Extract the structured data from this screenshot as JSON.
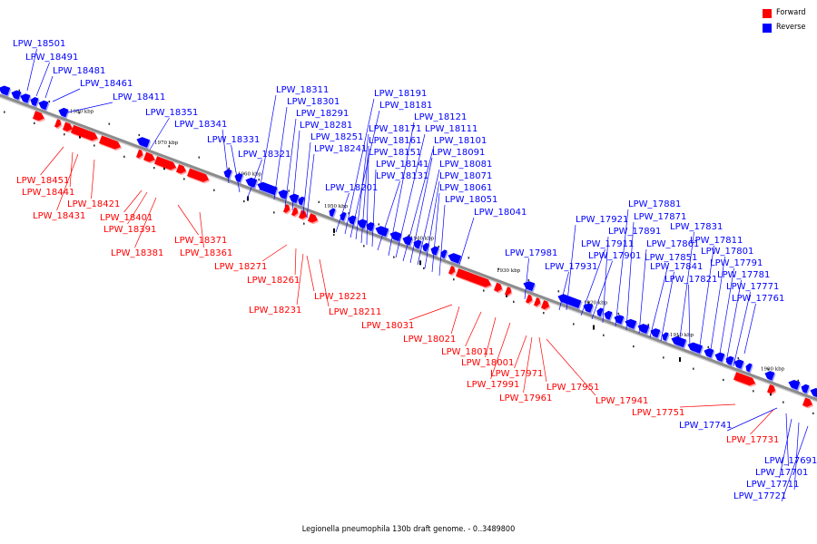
{
  "colors": {
    "forward": "#ff0000",
    "reverse": "#0000ff",
    "axis": "#8c8c8c"
  },
  "legend": [
    {
      "label": "Forward",
      "color": "#ff0000"
    },
    {
      "label": "Reverse",
      "color": "#0000ff"
    }
  ],
  "caption": "Legionella pneumophila 130b draft genome. - 0..3489800",
  "ticks": [
    "1980 kbp",
    "1970 kbp",
    "1960 kbp",
    "1950 kbp",
    "1940 kbp",
    "1930 kbp",
    "1920 kbp",
    "1910 kbp",
    "1900 kbp"
  ],
  "reverse_genes": [
    "LPW_18501",
    "LPW_18491",
    "LPW_18481",
    "LPW_18461",
    "LPW_18411",
    "LPW_18351",
    "LPW_18341",
    "LPW_18331",
    "LPW_18321",
    "LPW_18311",
    "LPW_18301",
    "LPW_18291",
    "LPW_18281",
    "LPW_18251",
    "LPW_18241",
    "LPW_18201",
    "LPW_18191",
    "LPW_18181",
    "LPW_18171",
    "LPW_18161",
    "LPW_18151",
    "LPW_18141",
    "LPW_18131",
    "LPW_18121",
    "LPW_18111",
    "LPW_18101",
    "LPW_18091",
    "LPW_18081",
    "LPW_18071",
    "LPW_18061",
    "LPW_18051",
    "LPW_18041",
    "LPW_17981",
    "LPW_17931",
    "LPW_17921",
    "LPW_17911",
    "LPW_17901",
    "LPW_17891",
    "LPW_17881",
    "LPW_17871",
    "LPW_17861",
    "LPW_17851",
    "LPW_17841",
    "LPW_17831",
    "LPW_17821",
    "LPW_17811",
    "LPW_17801",
    "LPW_17791",
    "LPW_17781",
    "LPW_17771",
    "LPW_17761",
    "LPW_17741",
    "LPW_17691",
    "LPW_17701",
    "LPW_17711",
    "LPW_17721"
  ],
  "forward_genes": [
    "LPW_18451",
    "LPW_18441",
    "LPW_18431",
    "LPW_18421",
    "LPW_18401",
    "LPW_18391",
    "LPW_18381",
    "LPW_18371",
    "LPW_18361",
    "LPW_18271",
    "LPW_18261",
    "LPW_18231",
    "LPW_18221",
    "LPW_18211",
    "LPW_18031",
    "LPW_18021",
    "LPW_18011",
    "LPW_18001",
    "LPW_17991",
    "LPW_17971",
    "LPW_17961",
    "LPW_17951",
    "LPW_17941",
    "LPW_17751",
    "LPW_17731"
  ]
}
